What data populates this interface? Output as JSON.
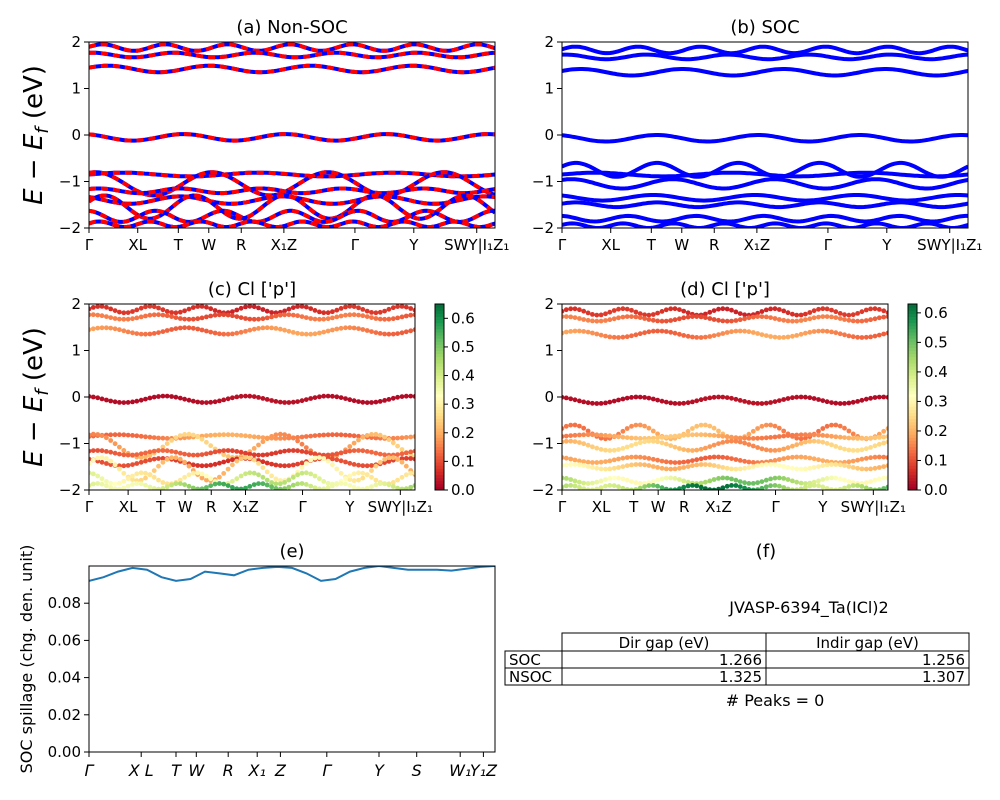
{
  "figure": {
    "ylabel_main": "E − E",
    "ylabel_sub": "f",
    "ylabel_unit": " (eV)"
  },
  "ticks_k": [
    {
      "label": "Γ",
      "k": 0.0
    },
    {
      "label": "XL",
      "k": 0.12
    },
    {
      "label": "T",
      "k": 0.22
    },
    {
      "label": "W",
      "k": 0.295
    },
    {
      "label": "R",
      "k": 0.375
    },
    {
      "label": "X₁Z",
      "k": 0.48
    },
    {
      "label": "Γ",
      "k": 0.655
    },
    {
      "label": "Y",
      "k": 0.8
    },
    {
      "label": "SWY|I₁Z₁",
      "k": 0.955
    }
  ],
  "ticks_spill": [
    {
      "label": "Γ",
      "k": 0.0
    },
    {
      "label": "X L",
      "k": 0.18
    },
    {
      "label": "T",
      "k": 0.3
    },
    {
      "label": "W",
      "k": 0.37
    },
    {
      "label": "R",
      "k": 0.48
    },
    {
      "label": "X₁",
      "k": 0.58
    },
    {
      "label": "Z",
      "k": 0.66
    },
    {
      "label": "Γ",
      "k": 0.82
    },
    {
      "label": "Y",
      "k": 1.0
    },
    {
      "label": "S",
      "k": 1.13
    },
    {
      "label": "W₁",
      "k": 1.28
    },
    {
      "label": "Y₁Z",
      "k": 1.36
    }
  ],
  "chart_data": [
    {
      "id": "a",
      "type": "line",
      "title": "(a) Non-SOC",
      "ylim": [
        -2,
        2
      ],
      "yticks": [
        -2,
        -1,
        0,
        1,
        2
      ],
      "colors": [
        "#0000ff",
        "#ff0000"
      ],
      "bands": [
        {
          "base": 1.88,
          "amp": 0.07,
          "freq": 6.5,
          "ph": 0.2
        },
        {
          "base": 1.72,
          "amp": 0.05,
          "freq": 5.0,
          "ph": 1.3
        },
        {
          "base": 1.42,
          "amp": 0.07,
          "freq": 4.0,
          "ph": 0.4
        },
        {
          "base": -0.05,
          "amp": 0.07,
          "freq": 4.0,
          "ph": 2.0
        },
        {
          "base": -0.85,
          "amp": 0.04,
          "freq": 3.0,
          "ph": 0.0
        },
        {
          "base": -1.05,
          "amp": 0.25,
          "freq": 3.5,
          "ph": 1.2
        },
        {
          "base": -1.2,
          "amp": 0.05,
          "freq": 5.0,
          "ph": 0.8
        },
        {
          "base": -1.4,
          "amp": 0.08,
          "freq": 4.0,
          "ph": 2.2
        },
        {
          "base": -1.55,
          "amp": 0.25,
          "freq": 4.5,
          "ph": 0.5
        },
        {
          "base": -1.75,
          "amp": 0.12,
          "freq": 6.0,
          "ph": 1.7
        },
        {
          "base": -1.92,
          "amp": 0.06,
          "freq": 8.0,
          "ph": 0.3
        }
      ]
    },
    {
      "id": "b",
      "type": "line",
      "title": "(b) SOC",
      "ylim": [
        -2,
        2
      ],
      "yticks": [
        -2,
        -1,
        0,
        1,
        2
      ],
      "colors": [
        "#0000ff"
      ],
      "bands": [
        {
          "base": 1.83,
          "amp": 0.07,
          "freq": 6.5,
          "ph": 0.2
        },
        {
          "base": 1.68,
          "amp": 0.05,
          "freq": 5.0,
          "ph": 1.3
        },
        {
          "base": 1.35,
          "amp": 0.07,
          "freq": 4.0,
          "ph": 0.4
        },
        {
          "base": -0.07,
          "amp": 0.07,
          "freq": 4.0,
          "ph": 2.0
        },
        {
          "base": -0.75,
          "amp": 0.15,
          "freq": 5.0,
          "ph": 0.5
        },
        {
          "base": -0.85,
          "amp": 0.04,
          "freq": 3.0,
          "ph": 0.0
        },
        {
          "base": -1.05,
          "amp": 0.1,
          "freq": 4.0,
          "ph": 1.0
        },
        {
          "base": -1.35,
          "amp": 0.06,
          "freq": 4.0,
          "ph": 2.2
        },
        {
          "base": -1.5,
          "amp": 0.05,
          "freq": 5.0,
          "ph": 0.5
        },
        {
          "base": -1.8,
          "amp": 0.06,
          "freq": 6.0,
          "ph": 1.7
        },
        {
          "base": -1.95,
          "amp": 0.05,
          "freq": 8.0,
          "ph": 0.3
        }
      ]
    },
    {
      "id": "c",
      "type": "scatter",
      "title": "(c)  Cl ['p']",
      "ylim": [
        -2,
        2
      ],
      "yticks": [
        -2,
        -1,
        0,
        1,
        2
      ],
      "colorbar": {
        "min": 0.0,
        "max": 0.65,
        "ticks": [
          0.0,
          0.1,
          0.2,
          0.3,
          0.4,
          0.5,
          0.6
        ]
      },
      "bands": [
        {
          "base": 1.88,
          "amp": 0.07,
          "freq": 6.5,
          "ph": 0.2,
          "w": 0.06
        },
        {
          "base": 1.72,
          "amp": 0.05,
          "freq": 5.0,
          "ph": 1.3,
          "w": 0.12
        },
        {
          "base": 1.42,
          "amp": 0.07,
          "freq": 4.0,
          "ph": 0.4,
          "w": 0.15
        },
        {
          "base": -0.05,
          "amp": 0.07,
          "freq": 4.0,
          "ph": 2.0,
          "w": 0.02
        },
        {
          "base": -0.85,
          "amp": 0.04,
          "freq": 3.0,
          "ph": 0.0,
          "w": 0.16
        },
        {
          "base": -1.05,
          "amp": 0.25,
          "freq": 3.5,
          "ph": 1.2,
          "w": 0.2
        },
        {
          "base": -1.2,
          "amp": 0.05,
          "freq": 5.0,
          "ph": 0.8,
          "w": 0.1
        },
        {
          "base": -1.4,
          "amp": 0.08,
          "freq": 4.0,
          "ph": 2.2,
          "w": 0.08
        },
        {
          "base": -1.55,
          "amp": 0.25,
          "freq": 4.5,
          "ph": 0.5,
          "w": 0.25
        },
        {
          "base": -1.75,
          "amp": 0.12,
          "freq": 6.0,
          "ph": 1.7,
          "w": 0.35
        },
        {
          "base": -1.92,
          "amp": 0.06,
          "freq": 8.0,
          "ph": 0.3,
          "w": 0.45
        }
      ]
    },
    {
      "id": "d",
      "type": "scatter",
      "title": "(d) Cl ['p']",
      "ylim": [
        -2,
        2
      ],
      "yticks": [
        -2,
        -1,
        0,
        1,
        2
      ],
      "colorbar": {
        "min": 0.0,
        "max": 0.63,
        "ticks": [
          0.0,
          0.1,
          0.2,
          0.3,
          0.4,
          0.5,
          0.6
        ]
      },
      "bands": [
        {
          "base": 1.83,
          "amp": 0.07,
          "freq": 6.5,
          "ph": 0.2,
          "w": 0.06
        },
        {
          "base": 1.68,
          "amp": 0.05,
          "freq": 5.0,
          "ph": 1.3,
          "w": 0.12
        },
        {
          "base": 1.35,
          "amp": 0.07,
          "freq": 4.0,
          "ph": 0.4,
          "w": 0.15
        },
        {
          "base": -0.07,
          "amp": 0.07,
          "freq": 4.0,
          "ph": 2.0,
          "w": 0.02
        },
        {
          "base": -0.75,
          "amp": 0.15,
          "freq": 5.0,
          "ph": 0.5,
          "w": 0.17
        },
        {
          "base": -0.85,
          "amp": 0.04,
          "freq": 3.0,
          "ph": 0.0,
          "w": 0.18
        },
        {
          "base": -1.05,
          "amp": 0.1,
          "freq": 4.0,
          "ph": 1.0,
          "w": 0.2
        },
        {
          "base": -1.35,
          "amp": 0.06,
          "freq": 4.0,
          "ph": 2.2,
          "w": 0.15
        },
        {
          "base": -1.5,
          "amp": 0.05,
          "freq": 5.0,
          "ph": 0.5,
          "w": 0.25
        },
        {
          "base": -1.8,
          "amp": 0.06,
          "freq": 6.0,
          "ph": 1.7,
          "w": 0.4
        },
        {
          "base": -1.95,
          "amp": 0.05,
          "freq": 8.0,
          "ph": 0.3,
          "w": 0.5
        }
      ]
    },
    {
      "id": "e",
      "type": "line",
      "title": "(e)",
      "ylabel": "SOC spillage (chg. den. unit)",
      "ylim": [
        0,
        0.1
      ],
      "yticks": [
        0.0,
        0.02,
        0.04,
        0.06,
        0.08
      ],
      "xlim": [
        0,
        1.4
      ],
      "color": "#1f77b4",
      "x": [
        0.0,
        0.05,
        0.1,
        0.15,
        0.2,
        0.25,
        0.3,
        0.35,
        0.4,
        0.45,
        0.5,
        0.55,
        0.6,
        0.65,
        0.7,
        0.75,
        0.8,
        0.85,
        0.9,
        0.95,
        1.0,
        1.05,
        1.1,
        1.15,
        1.2,
        1.25,
        1.3,
        1.35,
        1.4
      ],
      "y": [
        0.092,
        0.094,
        0.097,
        0.099,
        0.098,
        0.094,
        0.092,
        0.093,
        0.097,
        0.096,
        0.095,
        0.098,
        0.099,
        0.0995,
        0.099,
        0.096,
        0.092,
        0.093,
        0.097,
        0.099,
        0.1,
        0.099,
        0.098,
        0.098,
        0.098,
        0.0975,
        0.0985,
        0.0995,
        0.1
      ]
    },
    {
      "id": "f",
      "type": "table",
      "title": "(f)",
      "caption": "JVASP-6394_Ta(ICl)2",
      "columns": [
        "",
        "Dir gap (eV)",
        "Indir gap (eV)"
      ],
      "rows": [
        [
          "SOC",
          "1.266",
          "1.256"
        ],
        [
          "NSOC",
          "1.325",
          "1.307"
        ]
      ],
      "footer": "# Peaks = 0"
    }
  ]
}
